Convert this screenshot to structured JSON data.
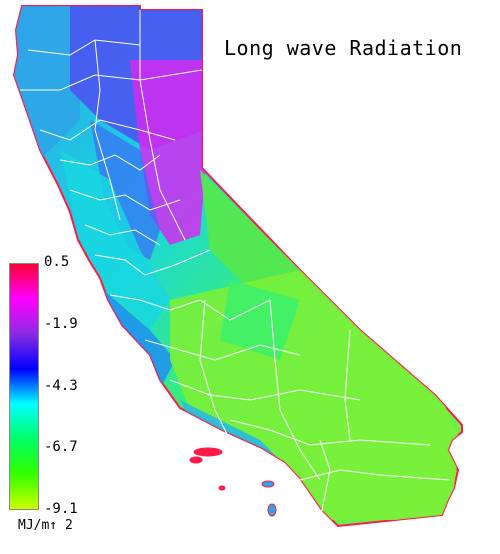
{
  "title": "Long wave Radiation",
  "legend": {
    "units": "MJ/m↑ 2",
    "ticks": [
      "0.5",
      "-1.9",
      "-4.3",
      "-6.7",
      "-9.1"
    ],
    "min": -9.1,
    "max": 0.5,
    "colors": [
      "#ff0033",
      "#ff00ff",
      "#8a2be2",
      "#0000ff",
      "#00ffff",
      "#00ff66",
      "#33ff00",
      "#ccff00"
    ]
  },
  "map": {
    "region": "California",
    "colors": {
      "north_coast": "#2fa4e8",
      "klamath": "#4a55f0",
      "sierra_high": "#d22cf0",
      "central_valley": "#19d6e0",
      "coast_ranges": "#1f8ff2",
      "south_coast": "#27b8e6",
      "great_basin_edge": "#55e84f",
      "mojave": "#7bef3a",
      "owens": "#3ef06a",
      "border_lines": "#ffffff",
      "coast_outline": "#ff1a4a"
    }
  }
}
